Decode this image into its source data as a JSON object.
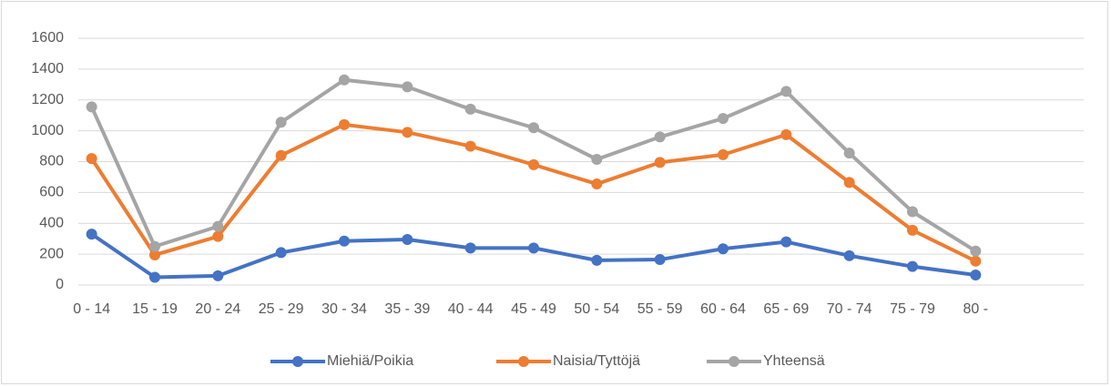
{
  "chart_data": {
    "type": "line",
    "categories": [
      "0 - 14",
      "15 - 19",
      "20 - 24",
      "25 - 29",
      "30 - 34",
      "35 - 39",
      "40 - 44",
      "45 - 49",
      "50 - 54",
      "55 - 59",
      "60 - 64",
      "65 - 69",
      "70 - 74",
      "75 - 79",
      "80 -"
    ],
    "series": [
      {
        "name": "Miehiä/Poikia",
        "color": "#4472c4",
        "values": [
          330,
          50,
          60,
          210,
          285,
          295,
          240,
          240,
          160,
          165,
          235,
          280,
          190,
          120,
          65
        ]
      },
      {
        "name": "Naisia/Tyttöjä",
        "color": "#ed7d31",
        "values": [
          820,
          195,
          315,
          840,
          1040,
          990,
          900,
          780,
          655,
          795,
          845,
          975,
          665,
          355,
          155
        ]
      },
      {
        "name": "Yhteensä",
        "color": "#a5a5a5",
        "values": [
          1155,
          250,
          380,
          1055,
          1330,
          1285,
          1140,
          1020,
          815,
          960,
          1080,
          1255,
          855,
          475,
          220
        ]
      }
    ],
    "ylim": [
      0,
      1600
    ],
    "yticks": [
      0,
      200,
      400,
      600,
      800,
      1000,
      1200,
      1400,
      1600
    ],
    "grid": true,
    "legend": "bottom"
  }
}
